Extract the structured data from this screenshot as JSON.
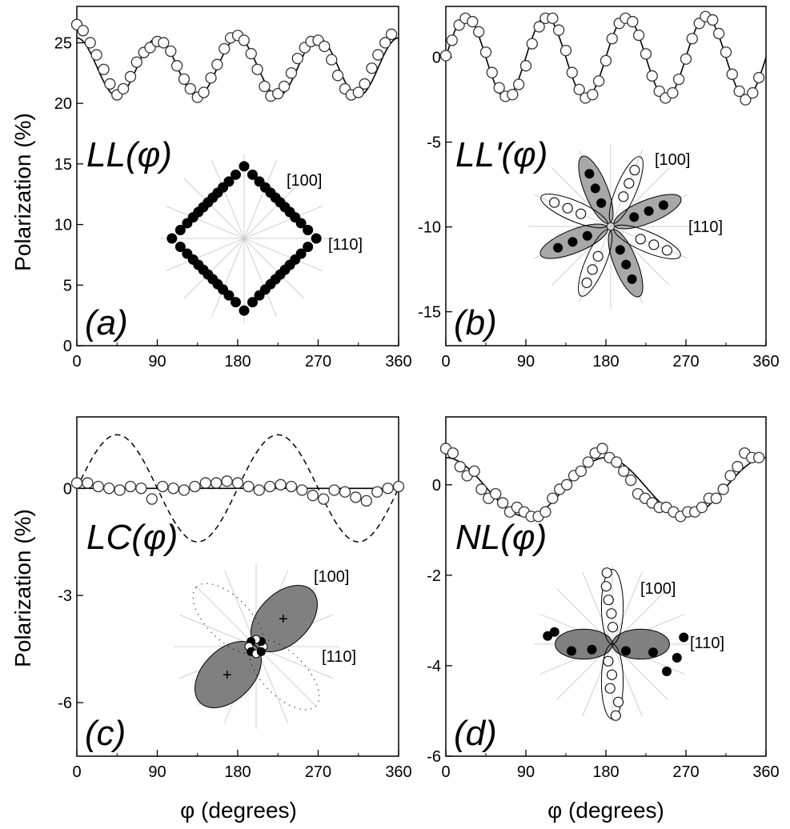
{
  "figure": {
    "ylabel": "Polarization (%)",
    "xlabel": "φ (degrees)"
  },
  "chart_data": [
    {
      "id": "a",
      "type": "scatter",
      "panel_label": "(a)",
      "function_label": "LL(φ)",
      "ylim": [
        0,
        28
      ],
      "yticks": [
        "0",
        "5",
        "10",
        "15",
        "20",
        "25"
      ],
      "xlim": [
        0,
        360
      ],
      "xticks": [
        "0",
        "90",
        "180",
        "270",
        "360"
      ],
      "fit": {
        "offset": 23,
        "amp": 2.4,
        "period": 90,
        "phase": 0,
        "style": "solid"
      },
      "points_phi": [
        0,
        7,
        15,
        22,
        30,
        37,
        45,
        52,
        60,
        67,
        75,
        82,
        90,
        97,
        105,
        112,
        120,
        127,
        135,
        142,
        150,
        157,
        165,
        172,
        180,
        187,
        195,
        202,
        210,
        217,
        225,
        232,
        240,
        247,
        255,
        262,
        270,
        277,
        285,
        292,
        300,
        307,
        315,
        322,
        330,
        337,
        345,
        352
      ],
      "points_y": [
        26.5,
        26.0,
        25.0,
        24.0,
        22.8,
        21.6,
        20.7,
        21.2,
        22.2,
        23.4,
        24.2,
        24.6,
        25.1,
        25.0,
        24.3,
        23.1,
        22.0,
        21.2,
        20.5,
        20.9,
        22.1,
        23.2,
        24.5,
        25.4,
        25.6,
        25.2,
        24.1,
        22.8,
        21.4,
        20.6,
        20.8,
        21.4,
        22.5,
        23.7,
        24.6,
        25.1,
        25.2,
        24.7,
        23.6,
        22.3,
        21.2,
        20.7,
        20.9,
        21.6,
        22.9,
        24.0,
        25.0,
        25.7
      ],
      "polar": {
        "shape": "square",
        "filled_markers": true,
        "labels": [
          "[100]",
          "[110]"
        ]
      }
    },
    {
      "id": "b",
      "type": "scatter",
      "panel_label": "(b)",
      "function_label": "LL'(φ)",
      "ylim": [
        -17,
        3
      ],
      "yticks": [
        "-15",
        "-10",
        "-5",
        "0"
      ],
      "xlim": [
        0,
        360
      ],
      "xticks": [
        "0",
        "90",
        "180",
        "270",
        "360"
      ],
      "fit": {
        "offset": 0,
        "amp": 2.4,
        "period": 90,
        "phase": 22.5,
        "style": "solid"
      },
      "points_phi": [
        0,
        7,
        15,
        22,
        30,
        37,
        45,
        52,
        60,
        67,
        75,
        82,
        90,
        97,
        105,
        112,
        120,
        127,
        135,
        142,
        150,
        157,
        165,
        172,
        180,
        187,
        195,
        202,
        210,
        217,
        225,
        232,
        240,
        247,
        255,
        262,
        270,
        277,
        285,
        292,
        300,
        307,
        315,
        322,
        330,
        337,
        345,
        352
      ],
      "points_y": [
        0.1,
        1.0,
        1.9,
        2.3,
        2.1,
        1.5,
        0.3,
        -0.9,
        -1.8,
        -2.3,
        -2.2,
        -1.6,
        -0.5,
        0.8,
        1.8,
        2.3,
        2.3,
        1.6,
        0.4,
        -0.9,
        -1.9,
        -2.4,
        -2.2,
        -1.4,
        -0.2,
        1.1,
        2.0,
        2.3,
        2.1,
        1.3,
        0.2,
        -1.1,
        -2.0,
        -2.4,
        -2.1,
        -1.3,
        -0.1,
        1.1,
        2.0,
        2.4,
        2.2,
        1.4,
        0.3,
        -1.0,
        -2.0,
        -2.5,
        -2.1,
        -1.2
      ],
      "polar": {
        "shape": "clover",
        "filled_markers": true,
        "labels": [
          "[100]",
          "[110]"
        ]
      }
    },
    {
      "id": "c",
      "type": "scatter",
      "panel_label": "(c)",
      "function_label": "LC(φ)",
      "ylim": [
        -7.5,
        2
      ],
      "yticks": [
        "-6",
        "-3",
        "0"
      ],
      "xlim": [
        0,
        360
      ],
      "xticks": [
        "0",
        "90",
        "180",
        "270",
        "360"
      ],
      "fit": {
        "offset": 0,
        "amp": 0,
        "period": 180,
        "phase": 0,
        "style": "solid"
      },
      "dashed": {
        "offset": 0,
        "amp": 1.5,
        "period": 180,
        "phase": 0
      },
      "points_phi": [
        0,
        12,
        24,
        36,
        48,
        60,
        72,
        84,
        96,
        108,
        120,
        132,
        144,
        156,
        168,
        180,
        192,
        204,
        216,
        228,
        240,
        252,
        264,
        276,
        288,
        300,
        312,
        324,
        336,
        348,
        360
      ],
      "points_y": [
        0.15,
        0.15,
        0.05,
        0.0,
        -0.05,
        0.05,
        0.0,
        -0.3,
        0.05,
        0.0,
        -0.05,
        0.05,
        0.15,
        0.15,
        0.2,
        0.15,
        0.05,
        -0.05,
        0.05,
        0.1,
        0.05,
        -0.05,
        -0.2,
        -0.3,
        -0.05,
        -0.1,
        -0.25,
        -0.35,
        -0.1,
        0.0,
        0.05
      ],
      "polar": {
        "shape": "twolobe",
        "filled_markers": false,
        "labels": [
          "[100]",
          "[110]"
        ]
      }
    },
    {
      "id": "d",
      "type": "scatter",
      "panel_label": "(d)",
      "function_label": "NL(φ)",
      "ylim": [
        -6,
        1.5
      ],
      "yticks": [
        "-6",
        "-4",
        "-2",
        "0"
      ],
      "xlim": [
        0,
        360
      ],
      "xticks": [
        "0",
        "90",
        "180",
        "270",
        "360"
      ],
      "fit": {
        "offset": -0.05,
        "amp": 0.65,
        "period": 180,
        "phase": 0,
        "style": "solid"
      },
      "points_phi": [
        0,
        8,
        16,
        24,
        32,
        40,
        48,
        56,
        64,
        72,
        80,
        88,
        96,
        104,
        112,
        120,
        128,
        136,
        144,
        152,
        160,
        168,
        176,
        184,
        192,
        200,
        208,
        216,
        224,
        232,
        240,
        248,
        256,
        264,
        272,
        280,
        288,
        296,
        304,
        312,
        320,
        328,
        336,
        344,
        352
      ],
      "points_y": [
        0.8,
        0.7,
        0.4,
        0.2,
        0.3,
        -0.1,
        -0.3,
        -0.2,
        -0.4,
        -0.6,
        -0.5,
        -0.6,
        -0.7,
        -0.7,
        -0.6,
        -0.3,
        -0.1,
        0.0,
        0.2,
        0.3,
        0.5,
        0.7,
        0.8,
        0.6,
        0.5,
        0.3,
        0.1,
        -0.2,
        -0.3,
        -0.4,
        -0.5,
        -0.5,
        -0.6,
        -0.7,
        -0.6,
        -0.6,
        -0.5,
        -0.3,
        -0.3,
        -0.1,
        0.2,
        0.4,
        0.7,
        0.6,
        0.6
      ],
      "polar": {
        "shape": "cross",
        "filled_markers": true,
        "labels": [
          "[100]",
          "[110]"
        ]
      }
    }
  ]
}
